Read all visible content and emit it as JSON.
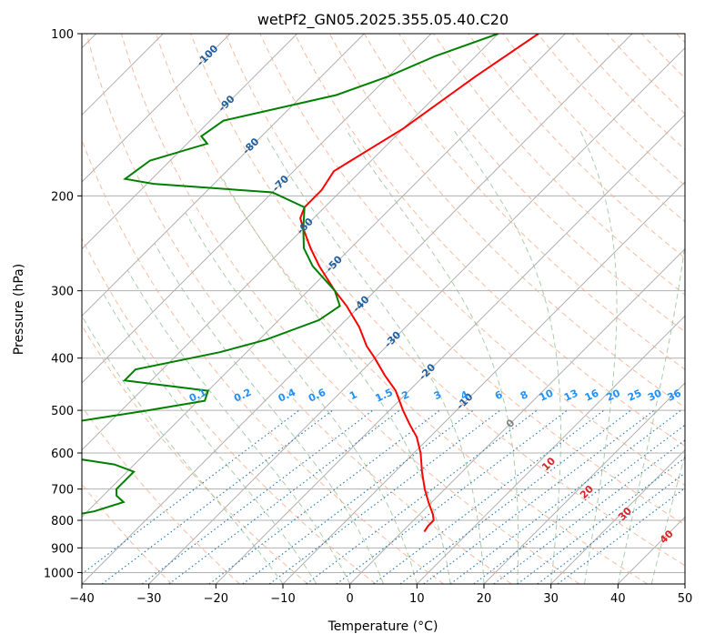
{
  "chart_data": {
    "type": "line",
    "subtype": "skew-t log-p diagram",
    "title": "wetPf2_GN05.2025.355.05.40.C20",
    "xlabel": "Temperature (°C)",
    "ylabel": "Pressure (hPa)",
    "xlim": [
      -40,
      50
    ],
    "ylim": [
      1050,
      100
    ],
    "x_ticks": [
      -40,
      -30,
      -20,
      -10,
      0,
      10,
      20,
      30,
      40,
      50
    ],
    "x_tick_labels": [
      "−40",
      "−30",
      "−20",
      "−10",
      "0",
      "10",
      "20",
      "30",
      "40",
      "50"
    ],
    "y_ticks": [
      100,
      200,
      300,
      400,
      500,
      600,
      700,
      800,
      900,
      1000
    ],
    "y_tick_labels": [
      "100",
      "200",
      "300",
      "400",
      "500",
      "600",
      "700",
      "800",
      "900",
      "1000"
    ],
    "grid": true,
    "isotherms": [
      -100,
      -90,
      -80,
      -70,
      -60,
      -50,
      -40,
      -30,
      -20,
      -10,
      0,
      10,
      20,
      30,
      40
    ],
    "isotherm_labels": [
      {
        "text": "-100",
        "t": -100,
        "p": 110
      },
      {
        "text": "-90",
        "t": -90,
        "p": 135
      },
      {
        "text": "-80",
        "t": -80,
        "p": 162
      },
      {
        "text": "-70",
        "t": -70,
        "p": 190
      },
      {
        "text": "-60",
        "t": -60,
        "p": 228
      },
      {
        "text": "-50",
        "t": -50,
        "p": 268
      },
      {
        "text": "-40",
        "t": -40,
        "p": 318
      },
      {
        "text": "-30",
        "t": -30,
        "p": 370
      },
      {
        "text": "-20",
        "t": -20,
        "p": 425
      },
      {
        "text": "-10",
        "t": -10,
        "p": 482
      }
    ],
    "mixing_ratio_labels": [
      "0.1",
      "0.2",
      "0.4",
      "0.6",
      "1",
      "1.5",
      "2",
      "3",
      "4",
      "6",
      "8",
      "10",
      "13",
      "16",
      "20",
      "25",
      "30",
      "36"
    ],
    "mixing_ratio_label_x": [
      -22.5,
      -15.8,
      -9.2,
      -4.7,
      0.7,
      5.3,
      8.5,
      13.3,
      17.3,
      22.4,
      26.2,
      29.5,
      33.2,
      36.3,
      39.5,
      42.7,
      45.7,
      48.6
    ],
    "mixing_ratio_start_t_1000hpa": [
      -42,
      -37,
      -31,
      -27,
      -21,
      -16,
      -12,
      -6.5,
      -2,
      3.5,
      7.5,
      11,
      15,
      18.5,
      21.5,
      25,
      28,
      31
    ],
    "moist_adiabat_labels": [
      {
        "text": "0",
        "t": 24,
        "p": 530,
        "color": "#808080"
      },
      {
        "text": "10",
        "t": 29.7,
        "p": 630,
        "color": "#d62728"
      },
      {
        "text": "20",
        "t": 35.4,
        "p": 710,
        "color": "#d62728"
      },
      {
        "text": "30",
        "t": 41.1,
        "p": 780,
        "color": "#d62728"
      },
      {
        "text": "40",
        "t": 47.3,
        "p": 860,
        "color": "#d62728"
      }
    ],
    "series": [
      {
        "name": "Temperature",
        "color": "#ff0000",
        "points": [
          [
            100,
            -54
          ],
          [
            120,
            -57
          ],
          [
            150,
            -60
          ],
          [
            180,
            -64
          ],
          [
            195,
            -63
          ],
          [
            210,
            -63
          ],
          [
            220,
            -62
          ],
          [
            230,
            -60
          ],
          [
            250,
            -56
          ],
          [
            270,
            -52
          ],
          [
            300,
            -46
          ],
          [
            320,
            -42
          ],
          [
            350,
            -37
          ],
          [
            380,
            -33
          ],
          [
            400,
            -30
          ],
          [
            430,
            -26
          ],
          [
            460,
            -22
          ],
          [
            500,
            -18
          ],
          [
            530,
            -15
          ],
          [
            560,
            -12
          ],
          [
            600,
            -9
          ],
          [
            650,
            -6
          ],
          [
            700,
            -3
          ],
          [
            740,
            -0.5
          ],
          [
            780,
            2
          ],
          [
            800,
            3
          ],
          [
            820,
            3
          ],
          [
            840,
            3.3
          ]
        ]
      },
      {
        "name": "Dewpoint",
        "color": "#008000",
        "points": [
          [
            100,
            -60
          ],
          [
            110,
            -66
          ],
          [
            120,
            -70
          ],
          [
            130,
            -75
          ],
          [
            145,
            -88
          ],
          [
            155,
            -89
          ],
          [
            160,
            -87
          ],
          [
            172,
            -93
          ],
          [
            186,
            -94
          ],
          [
            190,
            -89
          ],
          [
            197,
            -70
          ],
          [
            210,
            -63
          ],
          [
            230,
            -60
          ],
          [
            250,
            -57
          ],
          [
            270,
            -53
          ],
          [
            300,
            -46
          ],
          [
            320,
            -43
          ],
          [
            340,
            -44
          ],
          [
            370,
            -49
          ],
          [
            390,
            -54
          ],
          [
            420,
            -64
          ],
          [
            440,
            -64
          ],
          [
            460,
            -50
          ],
          [
            480,
            -49
          ],
          [
            500,
            -56
          ],
          [
            530,
            -67
          ],
          [
            550,
            -72
          ],
          [
            580,
            -70
          ],
          [
            600,
            -66
          ],
          [
            630,
            -53
          ],
          [
            650,
            -49
          ],
          [
            670,
            -49
          ],
          [
            700,
            -49
          ],
          [
            720,
            -48
          ],
          [
            740,
            -46
          ],
          [
            770,
            -49
          ],
          [
            790,
            -53
          ],
          [
            810,
            -56
          ],
          [
            830,
            -51
          ],
          [
            840,
            -48
          ]
        ]
      }
    ],
    "colors": {
      "temperature": "#ff0000",
      "dewpoint": "#008000",
      "dry_adiabat": "#f4a582",
      "moist_adiabat": "#8fbc8f",
      "mixing_ratio": "#1f77b4",
      "mixing_ratio_label": "#1e90ff",
      "isotherm_label": "#1f5f9f",
      "grid": "#b0b0b0"
    }
  }
}
